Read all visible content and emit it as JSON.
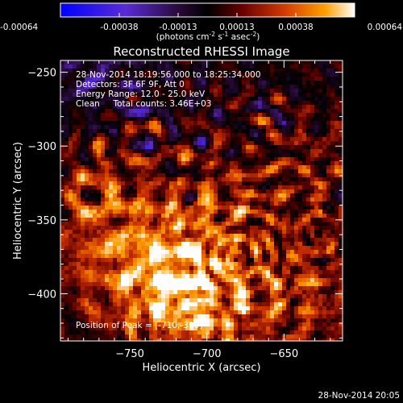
{
  "chart_data": {
    "type": "heatmap",
    "title": "Reconstructed RHESSI Image",
    "xlabel": "Heliocentric X (arcsec)",
    "ylabel": "Heliocentric Y (arcsec)",
    "xlim": [
      -795,
      -612
    ],
    "ylim": [
      -432,
      -242
    ],
    "x_ticks": [
      -750,
      -700,
      -650
    ],
    "y_ticks": [
      -250,
      -300,
      -350,
      -400
    ],
    "colorbar": {
      "min": -0.00064,
      "max": 0.00064,
      "ticks": [
        "-0.00064",
        "-0.00038",
        "-0.00013",
        "0.00013",
        "0.00038",
        "0.00064"
      ],
      "unit_label": "(photons cm",
      "unit_sup1": "-2",
      "unit_mid": " s",
      "unit_sup2": "-1",
      "unit_mid2": " asec",
      "unit_sup3": "-2",
      "unit_end": ")",
      "colors": [
        "#0000ff",
        "#5a2bd6",
        "#2a0a3a",
        "#000000",
        "#5a0000",
        "#c83000",
        "#ff9a00",
        "#ffffff"
      ]
    },
    "info_lines": [
      "28-Nov-2014 18:19:56.000 to 18:25:34.000",
      "Detectors: 3F 6F 9F, Att 0",
      "Energy Range: 12.0 - 25.0 keV",
      "Clean     Total counts: 3.46E+03"
    ],
    "peak_label": "Position of Peak = [-710,-390]",
    "peak_position": [
      -710,
      -390
    ],
    "grid": false
  },
  "footer": {
    "timestamp": "28-Nov-2014 20:05"
  }
}
